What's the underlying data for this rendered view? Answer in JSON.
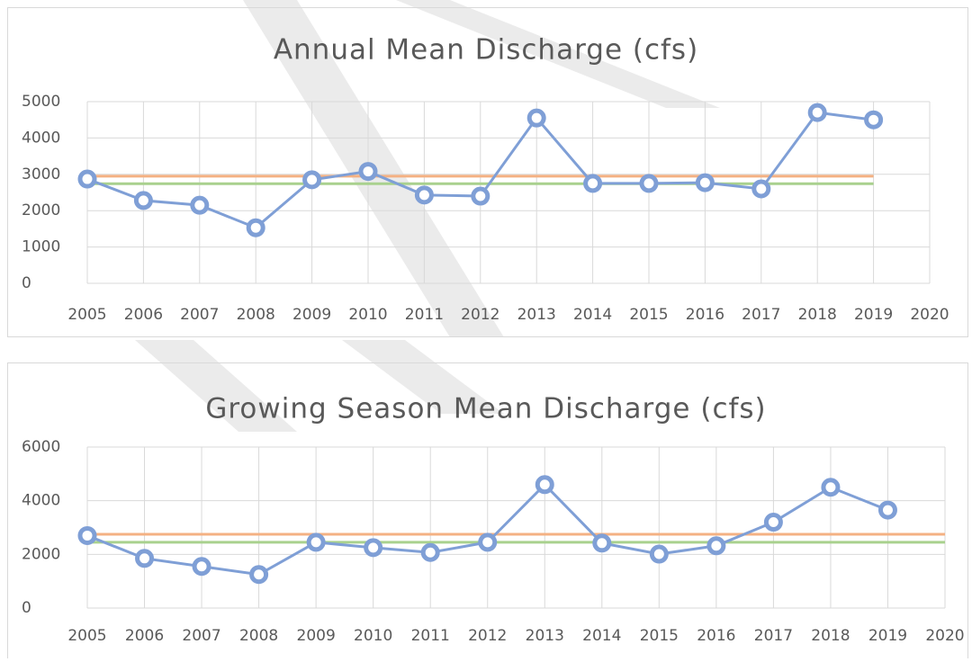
{
  "chart_data": [
    {
      "type": "line",
      "title": "Annual Mean Discharge (cfs)",
      "x": [
        2005,
        2006,
        2007,
        2008,
        2009,
        2010,
        2011,
        2012,
        2013,
        2014,
        2015,
        2016,
        2017,
        2018,
        2019
      ],
      "series": [
        {
          "color": "#7f9fd6",
          "values": [
            2870,
            2280,
            2150,
            1530,
            2850,
            3080,
            2430,
            2400,
            4550,
            2750,
            2750,
            2770,
            2600,
            4700,
            4500
          ]
        }
      ],
      "reference_lines": [
        {
          "value": 2950,
          "color": "#f4b183",
          "x": [
            2005,
            2019
          ]
        },
        {
          "value": 2740,
          "color": "#a9d18e",
          "x": [
            2005,
            2019
          ]
        }
      ],
      "xlim": [
        2005,
        2020
      ],
      "xticks": [
        2005,
        2006,
        2007,
        2008,
        2009,
        2010,
        2011,
        2012,
        2013,
        2014,
        2015,
        2016,
        2017,
        2018,
        2019,
        2020
      ],
      "ylim": [
        0,
        5000
      ],
      "yticks": [
        0,
        1000,
        2000,
        3000,
        4000,
        5000
      ],
      "grid": true
    },
    {
      "type": "line",
      "title": "Growing Season Mean Discharge (cfs)",
      "x": [
        2005,
        2006,
        2007,
        2008,
        2009,
        2010,
        2011,
        2012,
        2013,
        2014,
        2015,
        2016,
        2017,
        2018,
        2019
      ],
      "series": [
        {
          "color": "#7f9fd6",
          "values": [
            2700,
            1850,
            1550,
            1250,
            2450,
            2250,
            2070,
            2450,
            4600,
            2420,
            2010,
            2320,
            3200,
            4500,
            3650
          ]
        }
      ],
      "reference_lines": [
        {
          "value": 2750,
          "color": "#f4b183",
          "x": [
            2005,
            2020
          ]
        },
        {
          "value": 2450,
          "color": "#a9d18e",
          "x": [
            2005,
            2020
          ]
        }
      ],
      "xlim": [
        2005,
        2020
      ],
      "xticks": [
        2005,
        2006,
        2007,
        2008,
        2009,
        2010,
        2011,
        2012,
        2013,
        2014,
        2015,
        2016,
        2017,
        2018,
        2019,
        2020
      ],
      "ylim": [
        0,
        6000
      ],
      "yticks": [
        0,
        2000,
        4000,
        6000
      ],
      "grid": true
    }
  ]
}
